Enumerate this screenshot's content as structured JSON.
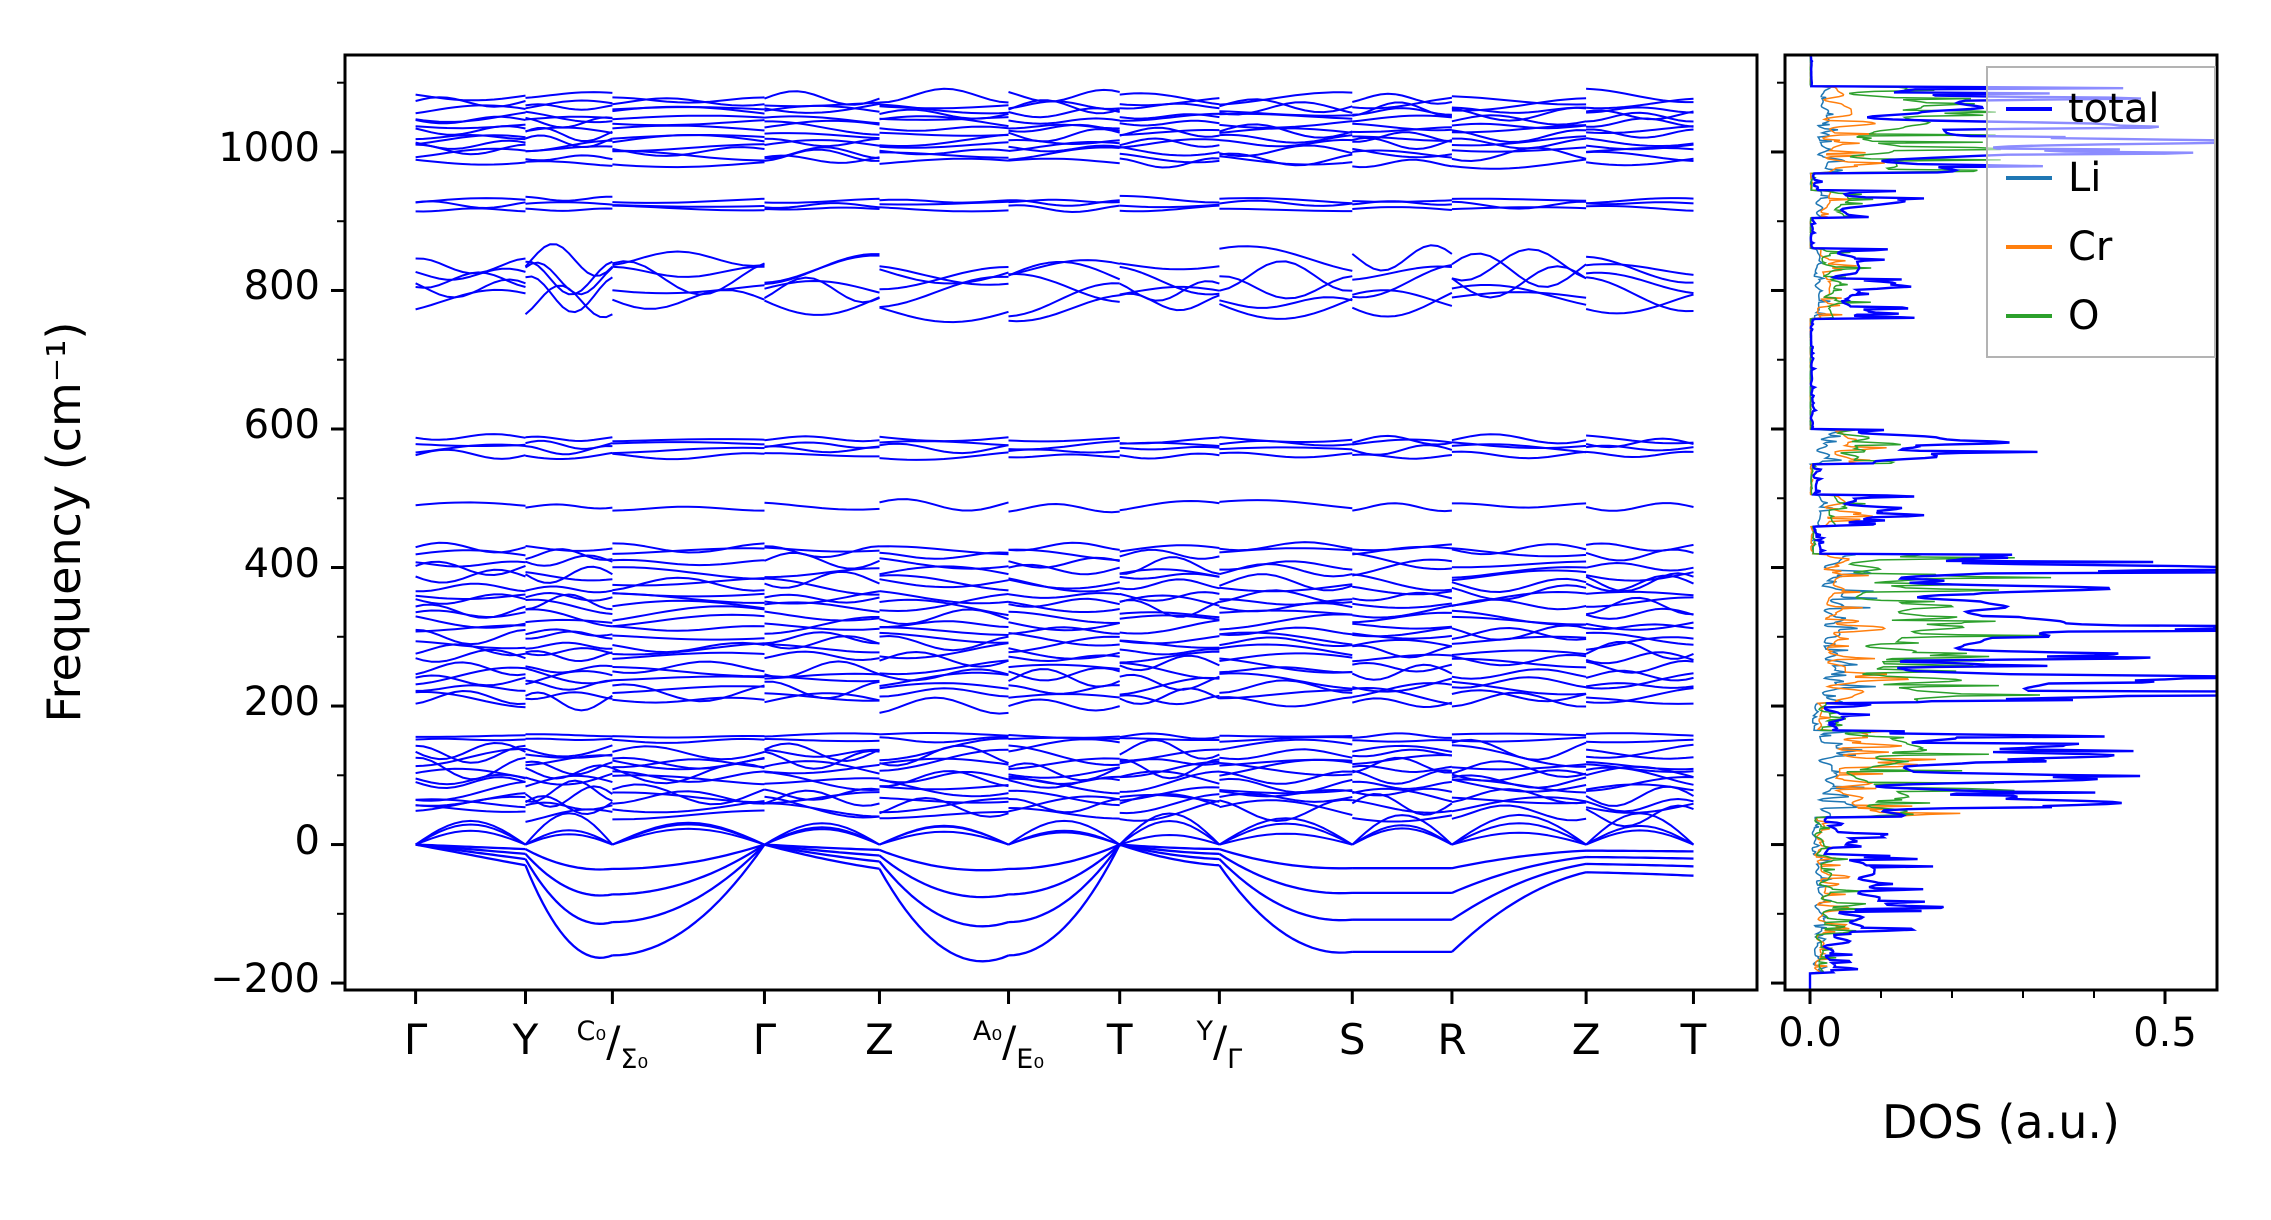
{
  "figure": {
    "background": "#ffffff"
  },
  "chart_data": [
    {
      "type": "line",
      "panel": "phonon-band-structure",
      "ylabel": "Frequency (cm⁻¹)",
      "ylim": [
        -210,
        1140
      ],
      "yticks": [
        -200,
        0,
        200,
        400,
        600,
        800,
        1000
      ],
      "ytick_labels": [
        "−200",
        "0",
        "200",
        "400",
        "600",
        "800",
        "1000"
      ],
      "minor_ytick_step": 100,
      "line_color": "#0000ff",
      "kpoint_fractions": [
        0,
        0.086,
        0.154,
        0.273,
        0.363,
        0.464,
        0.551,
        0.629,
        0.733,
        0.811,
        0.916,
        1
      ],
      "kpoint_labels": [
        {
          "text": "Γ"
        },
        {
          "text": "Y"
        },
        {
          "top": "C₀",
          "bottom": "Σ₀"
        },
        {
          "text": "Γ"
        },
        {
          "text": "Z"
        },
        {
          "top": "A₀",
          "bottom": "E₀"
        },
        {
          "text": "T"
        },
        {
          "top": "Y",
          "bottom": "Γ"
        },
        {
          "text": "S"
        },
        {
          "text": "R"
        },
        {
          "text": "Z"
        },
        {
          "text": "T"
        }
      ],
      "band_clusters": [
        {
          "count": 13,
          "fmin": 982,
          "fmax": 1082,
          "amp": 10
        },
        {
          "count": 3,
          "fmin": 915,
          "fmax": 934,
          "amp": 5
        },
        {
          "count": 5,
          "fmin": 772,
          "fmax": 845,
          "amp": 26
        },
        {
          "count": 4,
          "fmin": 558,
          "fmax": 590,
          "amp": 7
        },
        {
          "count": 1,
          "fmin": 480,
          "fmax": 494,
          "amp": 9
        },
        {
          "count": 2,
          "fmin": 416,
          "fmax": 432,
          "amp": 9
        },
        {
          "count": 20,
          "fmin": 200,
          "fmax": 410,
          "amp": 13
        },
        {
          "count": 2,
          "fmin": 148,
          "fmax": 160,
          "amp": 4
        },
        {
          "count": 12,
          "fmin": 42,
          "fmax": 140,
          "amp": 16
        }
      ],
      "soft_mode_profile": [
        0,
        -15,
        -30,
        -140,
        -160,
        -120,
        0,
        -20,
        -35,
        -150,
        -160,
        -120,
        0,
        -20,
        -30,
        -130,
        -155,
        -155,
        -155,
        -80,
        -40,
        -42,
        -45
      ],
      "soft_mode_scales": [
        1,
        0.7,
        0.45,
        0.22
      ],
      "acoustic_scales": [
        0.6,
        0.9,
        1.2
      ]
    },
    {
      "type": "line",
      "panel": "phonon-dos",
      "xlabel": "DOS (a.u.)",
      "xlim": [
        0,
        0.57
      ],
      "xticks": [
        0,
        0.5
      ],
      "xtick_labels": [
        "0.0",
        "0.5"
      ],
      "minor_xtick_step": 0.1,
      "series": [
        {
          "name": "total",
          "color": "#0000ff"
        },
        {
          "name": "Li",
          "color": "#1f77b4"
        },
        {
          "name": "Cr",
          "color": "#ff7f0e"
        },
        {
          "name": "O",
          "color": "#2ca02c"
        }
      ],
      "regions": [
        [
          -185,
          -130,
          0.06,
          0.015,
          0.02,
          0.02
        ],
        [
          -130,
          -15,
          0.1,
          0.02,
          0.03,
          0.04
        ],
        [
          -15,
          40,
          0.06,
          0.01,
          0.02,
          0.02
        ],
        [
          40,
          165,
          0.3,
          0.04,
          0.1,
          0.16
        ],
        [
          165,
          205,
          0.06,
          0.01,
          0.02,
          0.03
        ],
        [
          205,
          245,
          0.38,
          0.05,
          0.08,
          0.22
        ],
        [
          245,
          300,
          0.28,
          0.04,
          0.06,
          0.16
        ],
        [
          300,
          330,
          0.36,
          0.05,
          0.06,
          0.22
        ],
        [
          330,
          420,
          0.3,
          0.05,
          0.05,
          0.18
        ],
        [
          420,
          460,
          0.015,
          0.004,
          0.004,
          0.005
        ],
        [
          460,
          505,
          0.12,
          0.02,
          0.06,
          0.05
        ],
        [
          505,
          550,
          0.01,
          0.002,
          0.002,
          0.004
        ],
        [
          550,
          600,
          0.18,
          0.03,
          0.06,
          0.09
        ],
        [
          600,
          760,
          0.004,
          0.001,
          0.001,
          0.001
        ],
        [
          760,
          860,
          0.09,
          0.015,
          0.035,
          0.045
        ],
        [
          860,
          905,
          0.004,
          0.001,
          0.001,
          0.001
        ],
        [
          905,
          945,
          0.11,
          0.02,
          0.03,
          0.06
        ],
        [
          945,
          970,
          0.01,
          0.002,
          0.002,
          0.005
        ],
        [
          970,
          1095,
          0.26,
          0.03,
          0.06,
          0.17
        ],
        [
          1095,
          1140,
          0.003,
          0.001,
          0.001,
          0.001
        ]
      ],
      "total_spikes": [
        [
          1015,
          0.5
        ],
        [
          1040,
          0.3
        ],
        [
          1000,
          0.2
        ],
        [
          930,
          0.08
        ],
        [
          810,
          0.06
        ],
        [
          580,
          0.12
        ],
        [
          485,
          0.08
        ],
        [
          400,
          0.45
        ],
        [
          370,
          0.25
        ],
        [
          313,
          0.32
        ],
        [
          275,
          0.2
        ],
        [
          240,
          0.22
        ],
        [
          215,
          0.3
        ],
        [
          130,
          0.22
        ],
        [
          95,
          0.24
        ],
        [
          60,
          0.16
        ],
        [
          -90,
          0.05
        ]
      ]
    }
  ]
}
